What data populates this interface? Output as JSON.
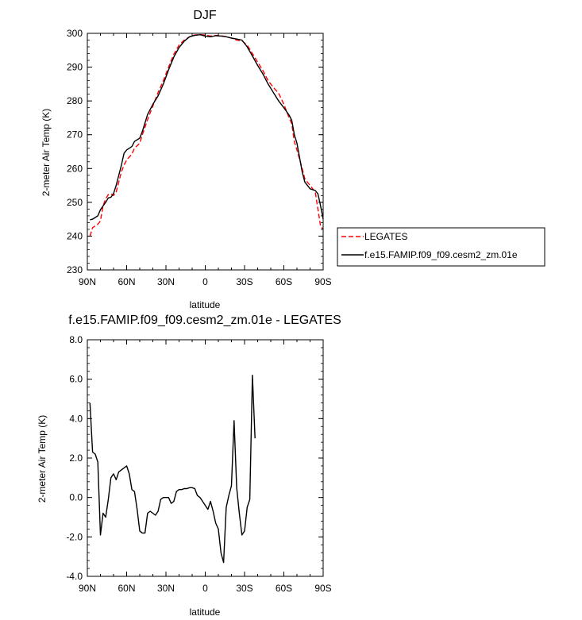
{
  "chart_data": [
    {
      "type": "line",
      "title": "DJF",
      "xlabel": "latitude",
      "ylabel": "2-meter Air Temp (K)",
      "xlim": [
        90,
        -90
      ],
      "ylim": [
        230,
        300
      ],
      "x_ticks": [
        90,
        60,
        30,
        0,
        -30,
        -60,
        -90
      ],
      "x_tick_labels": [
        "90N",
        "60N",
        "30N",
        "0",
        "30S",
        "60S",
        "90S"
      ],
      "y_ticks": [
        230,
        240,
        250,
        260,
        270,
        280,
        290,
        300
      ],
      "y_tick_labels": [
        "230",
        "240",
        "250",
        "260",
        "270",
        "280",
        "290",
        "300"
      ],
      "legend_position": "right",
      "series": [
        {
          "name": "LEGATES",
          "color": "#ff0000",
          "dash": "dashed",
          "points": [
            [
              88,
              240.0
            ],
            [
              86,
              242.5
            ],
            [
              82,
              243.5
            ],
            [
              80,
              244.5
            ],
            [
              78,
              249.0
            ],
            [
              76,
              251.0
            ],
            [
              74,
              252.3
            ],
            [
              72,
              252.5
            ],
            [
              70,
              252.0
            ],
            [
              68,
              253.0
            ],
            [
              64,
              259.0
            ],
            [
              62,
              261.0
            ],
            [
              60,
              262.5
            ],
            [
              56,
              264.3
            ],
            [
              54,
              266.0
            ],
            [
              50,
              267.5
            ],
            [
              48,
              270.0
            ],
            [
              44,
              274.5
            ],
            [
              40,
              278.5
            ],
            [
              36,
              282.5
            ],
            [
              32,
              286.0
            ],
            [
              28,
              290.0
            ],
            [
              24,
              293.8
            ],
            [
              20,
              296.5
            ],
            [
              16,
              298.0
            ],
            [
              12,
              299.0
            ],
            [
              8,
              299.5
            ],
            [
              4,
              299.6
            ],
            [
              0,
              299.5
            ],
            [
              -4,
              299.2
            ],
            [
              -8,
              299.4
            ],
            [
              -12,
              299.3
            ],
            [
              -16,
              299.0
            ],
            [
              -20,
              298.6
            ],
            [
              -24,
              298.0
            ],
            [
              -28,
              297.8
            ],
            [
              -32,
              296.5
            ],
            [
              -36,
              294.0
            ],
            [
              -40,
              291.5
            ],
            [
              -44,
              289.0
            ],
            [
              -48,
              286.0
            ],
            [
              -52,
              284.0
            ],
            [
              -56,
              282.3
            ],
            [
              -60,
              279.0
            ],
            [
              -64,
              275.0
            ],
            [
              -66,
              273.3
            ],
            [
              -68,
              268.0
            ],
            [
              -70,
              265.5
            ],
            [
              -74,
              260.0
            ],
            [
              -76,
              257.0
            ],
            [
              -80,
              255.0
            ],
            [
              -84,
              253.0
            ],
            [
              -86,
              248.0
            ],
            [
              -88,
              243.0
            ],
            [
              -90,
              242.0
            ]
          ]
        },
        {
          "name": "f.e15.FAMIP.f09_f09.cesm2_zm.01e",
          "color": "#000000",
          "dash": "solid",
          "points": [
            [
              88,
              244.8
            ],
            [
              86,
              245.0
            ],
            [
              82,
              246.0
            ],
            [
              80,
              247.8
            ],
            [
              78,
              248.9
            ],
            [
              76,
              250.0
            ],
            [
              74,
              251.3
            ],
            [
              72,
              251.5
            ],
            [
              70,
              252.6
            ],
            [
              68,
              255.0
            ],
            [
              64,
              261.0
            ],
            [
              62,
              264.5
            ],
            [
              60,
              265.5
            ],
            [
              56,
              266.5
            ],
            [
              54,
              268.0
            ],
            [
              50,
              269.0
            ],
            [
              48,
              271.0
            ],
            [
              44,
              276.0
            ],
            [
              40,
              279.0
            ],
            [
              36,
              281.5
            ],
            [
              32,
              285.0
            ],
            [
              28,
              289.2
            ],
            [
              24,
              293.0
            ],
            [
              20,
              295.8
            ],
            [
              16,
              297.7
            ],
            [
              12,
              299.0
            ],
            [
              8,
              299.4
            ],
            [
              4,
              299.6
            ],
            [
              0,
              299.2
            ],
            [
              -4,
              299.0
            ],
            [
              -8,
              299.3
            ],
            [
              -12,
              299.2
            ],
            [
              -16,
              299.0
            ],
            [
              -20,
              298.6
            ],
            [
              -24,
              298.3
            ],
            [
              -28,
              298.0
            ],
            [
              -32,
              296.0
            ],
            [
              -36,
              293.3
            ],
            [
              -40,
              290.5
            ],
            [
              -44,
              288.0
            ],
            [
              -48,
              285.0
            ],
            [
              -52,
              282.5
            ],
            [
              -56,
              280.0
            ],
            [
              -60,
              278.0
            ],
            [
              -64,
              275.8
            ],
            [
              -66,
              274.3
            ],
            [
              -68,
              270.0
            ],
            [
              -70,
              267.5
            ],
            [
              -74,
              259.0
            ],
            [
              -76,
              256.0
            ],
            [
              -80,
              254.0
            ],
            [
              -84,
              253.5
            ],
            [
              -86,
              252.5
            ],
            [
              -88,
              249.0
            ],
            [
              -90,
              245.0
            ]
          ]
        }
      ]
    },
    {
      "type": "line",
      "title": "f.e15.FAMIP.f09_f09.cesm2_zm.01e - LEGATES",
      "xlabel": "latitude",
      "ylabel": "2-meter Air Temp (K)",
      "xlim": [
        90,
        -90
      ],
      "ylim": [
        -4,
        8
      ],
      "x_ticks": [
        90,
        60,
        30,
        0,
        -30,
        -60,
        -90
      ],
      "x_tick_labels": [
        "90N",
        "60N",
        "30N",
        "0",
        "30S",
        "60S",
        "90S"
      ],
      "y_ticks": [
        -4,
        -2,
        0,
        2,
        4,
        6,
        8
      ],
      "y_tick_labels": [
        "-4.0",
        "-2.0",
        "0.0",
        "2.0",
        "4.0",
        "6.0",
        "8.0"
      ],
      "series": [
        {
          "color": "#000000",
          "dash": "solid",
          "points": [
            [
              88,
              4.8
            ],
            [
              86,
              2.3
            ],
            [
              84,
              2.2
            ],
            [
              82,
              1.8
            ],
            [
              80,
              -1.9
            ],
            [
              78,
              -0.8
            ],
            [
              76,
              -1.0
            ],
            [
              74,
              -0.1
            ],
            [
              72,
              1.0
            ],
            [
              70,
              1.2
            ],
            [
              68,
              0.9
            ],
            [
              66,
              1.3
            ],
            [
              64,
              1.4
            ],
            [
              62,
              1.5
            ],
            [
              60,
              1.6
            ],
            [
              58,
              1.2
            ],
            [
              56,
              0.4
            ],
            [
              54,
              0.3
            ],
            [
              52,
              -0.6
            ],
            [
              50,
              -1.7
            ],
            [
              48,
              -1.8
            ],
            [
              46,
              -1.8
            ],
            [
              44,
              -0.8
            ],
            [
              42,
              -0.7
            ],
            [
              40,
              -0.8
            ],
            [
              38,
              -0.9
            ],
            [
              36,
              -0.7
            ],
            [
              34,
              -0.1
            ],
            [
              32,
              0.0
            ],
            [
              30,
              0.0
            ],
            [
              28,
              0.0
            ],
            [
              26,
              -0.3
            ],
            [
              24,
              -0.2
            ],
            [
              22,
              0.3
            ],
            [
              20,
              0.4
            ],
            [
              18,
              0.4
            ],
            [
              16,
              0.45
            ],
            [
              14,
              0.45
            ],
            [
              12,
              0.5
            ],
            [
              10,
              0.5
            ],
            [
              8,
              0.45
            ],
            [
              6,
              0.1
            ],
            [
              4,
              0.0
            ],
            [
              2,
              -0.2
            ],
            [
              0,
              -0.4
            ],
            [
              -2,
              -0.6
            ],
            [
              -4,
              -0.2
            ],
            [
              -6,
              -0.7
            ],
            [
              -8,
              -1.3
            ],
            [
              -10,
              -1.6
            ],
            [
              -12,
              -2.8
            ],
            [
              -14,
              -3.3
            ],
            [
              -16,
              -0.5
            ],
            [
              -18,
              0.1
            ],
            [
              -20,
              0.6
            ],
            [
              -22,
              3.9
            ],
            [
              -24,
              0.5
            ],
            [
              -26,
              -0.8
            ],
            [
              -28,
              -1.9
            ],
            [
              -30,
              -1.7
            ],
            [
              -32,
              -0.5
            ],
            [
              -34,
              -0.1
            ],
            [
              -36,
              6.2
            ],
            [
              -38,
              3.0
            ]
          ]
        }
      ]
    }
  ]
}
